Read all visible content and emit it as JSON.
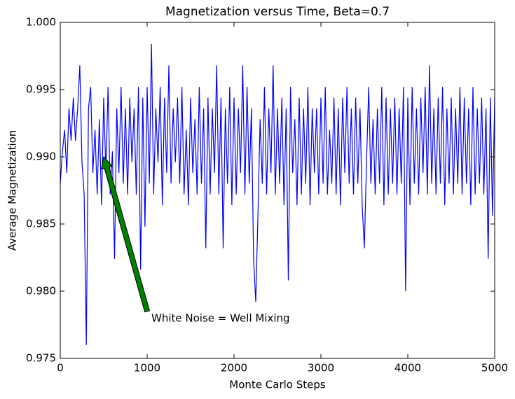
{
  "chart_data": {
    "type": "line",
    "title": "Magnetization versus Time, Beta=0.7",
    "xlabel": "Monte Carlo Steps",
    "ylabel": "Average Magnetization",
    "xlim": [
      0,
      5000
    ],
    "xticks": [
      0,
      1000,
      2000,
      3000,
      4000,
      5000
    ],
    "ylim": [
      0.975,
      1
    ],
    "yticks": [
      0.975,
      {
        "value": 0.98,
        "label": "0.980"
      },
      0.985,
      {
        "value": 0.99,
        "label": "0.990"
      },
      0.995,
      {
        "value": 1,
        "label": "1.000"
      }
    ],
    "grid": false,
    "annotation": {
      "text": "White Noise = Well Mixing",
      "xy": [
        500,
        0.99
      ],
      "xytext": [
        1000,
        0.9785
      ],
      "color": "#008000"
    },
    "series": [
      {
        "color": "#0000ff",
        "x": [
          0,
          25,
          50,
          75,
          100,
          125,
          150,
          175,
          200,
          225,
          250,
          275,
          300,
          325,
          350,
          375,
          400,
          425,
          450,
          475,
          500,
          525,
          550,
          575,
          600,
          625,
          650,
          675,
          700,
          725,
          750,
          775,
          800,
          825,
          850,
          875,
          900,
          925,
          950,
          975,
          1000,
          1025,
          1050,
          1075,
          1100,
          1125,
          1150,
          1175,
          1200,
          1225,
          1250,
          1275,
          1300,
          1325,
          1350,
          1375,
          1400,
          1425,
          1450,
          1475,
          1500,
          1525,
          1550,
          1575,
          1600,
          1625,
          1650,
          1675,
          1700,
          1725,
          1750,
          1775,
          1800,
          1825,
          1850,
          1875,
          1900,
          1925,
          1950,
          1975,
          2000,
          2025,
          2050,
          2075,
          2100,
          2125,
          2150,
          2175,
          2200,
          2225,
          2250,
          2275,
          2300,
          2325,
          2350,
          2375,
          2400,
          2425,
          2450,
          2475,
          2500,
          2525,
          2550,
          2575,
          2600,
          2625,
          2650,
          2675,
          2700,
          2725,
          2750,
          2775,
          2800,
          2825,
          2850,
          2875,
          2900,
          2925,
          2950,
          2975,
          3000,
          3025,
          3050,
          3075,
          3100,
          3125,
          3150,
          3175,
          3200,
          3225,
          3250,
          3275,
          3300,
          3325,
          3350,
          3375,
          3400,
          3425,
          3450,
          3475,
          3500,
          3525,
          3550,
          3575,
          3600,
          3625,
          3650,
          3675,
          3700,
          3725,
          3750,
          3775,
          3800,
          3825,
          3850,
          3875,
          3900,
          3925,
          3950,
          3975,
          4000,
          4025,
          4050,
          4075,
          4100,
          4125,
          4150,
          4175,
          4200,
          4225,
          4250,
          4275,
          4300,
          4325,
          4350,
          4375,
          4400,
          4425,
          4450,
          4475,
          4500,
          4525,
          4550,
          4575,
          4600,
          4625,
          4650,
          4675,
          4700,
          4725,
          4750,
          4775,
          4800,
          4825,
          4850,
          4875,
          4900,
          4925,
          4950,
          4975,
          5000
        ],
        "values": [
          0.988,
          0.9904,
          0.992,
          0.9888,
          0.9936,
          0.9912,
          0.9944,
          0.9912,
          0.9936,
          0.9968,
          0.9896,
          0.9872,
          0.976,
          0.9936,
          0.9952,
          0.9888,
          0.992,
          0.9872,
          0.9928,
          0.9864,
          0.9944,
          0.9888,
          0.9952,
          0.9872,
          0.9904,
          0.9824,
          0.9936,
          0.9888,
          0.9952,
          0.988,
          0.9936,
          0.9872,
          0.9944,
          0.9896,
          0.9936,
          0.9872,
          0.9952,
          0.9816,
          0.9944,
          0.9848,
          0.9952,
          0.988,
          0.9984,
          0.9872,
          0.9936,
          0.9896,
          0.9952,
          0.9864,
          0.9944,
          0.9888,
          0.9968,
          0.988,
          0.9936,
          0.9896,
          0.9944,
          0.988,
          0.9952,
          0.9872,
          0.992,
          0.9864,
          0.9944,
          0.9888,
          0.9928,
          0.9872,
          0.9952,
          0.988,
          0.9936,
          0.9832,
          0.9944,
          0.9872,
          0.9936,
          0.9888,
          0.9968,
          0.9872,
          0.9944,
          0.9832,
          0.9936,
          0.988,
          0.9952,
          0.9864,
          0.9944,
          0.9872,
          0.9936,
          0.9888,
          0.9968,
          0.9872,
          0.9952,
          0.988,
          0.9936,
          0.9824,
          0.9792,
          0.9856,
          0.9928,
          0.988,
          0.9952,
          0.9872,
          0.9936,
          0.9888,
          0.9968,
          0.9872,
          0.9936,
          0.988,
          0.9944,
          0.9864,
          0.9936,
          0.9808,
          0.9952,
          0.9888,
          0.9928,
          0.9864,
          0.9944,
          0.9872,
          0.9936,
          0.988,
          0.9952,
          0.9864,
          0.9936,
          0.9888,
          0.9936,
          0.9872,
          0.9944,
          0.988,
          0.9952,
          0.9872,
          0.992,
          0.988,
          0.9944,
          0.9872,
          0.9936,
          0.9864,
          0.9944,
          0.9888,
          0.9952,
          0.988,
          0.9936,
          0.9872,
          0.9944,
          0.988,
          0.9936,
          0.9864,
          0.9832,
          0.9896,
          0.9952,
          0.988,
          0.9928,
          0.9872,
          0.9936,
          0.988,
          0.9952,
          0.9864,
          0.9944,
          0.9872,
          0.9936,
          0.988,
          0.9944,
          0.9872,
          0.9936,
          0.988,
          0.9952,
          0.98,
          0.9944,
          0.9864,
          0.9952,
          0.988,
          0.9936,
          0.9872,
          0.9944,
          0.9888,
          0.9952,
          0.9872,
          0.9968,
          0.988,
          0.9936,
          0.9872,
          0.9944,
          0.988,
          0.9952,
          0.9864,
          0.9936,
          0.988,
          0.9944,
          0.9872,
          0.9936,
          0.988,
          0.9952,
          0.9872,
          0.9944,
          0.988,
          0.9936,
          0.9864,
          0.9952,
          0.9872,
          0.9936,
          0.988,
          0.9944,
          0.9872,
          0.9936,
          0.9824,
          0.9944,
          0.9856,
          0.9944
        ]
      }
    ]
  }
}
